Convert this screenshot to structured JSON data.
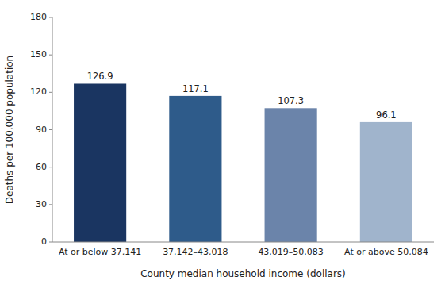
{
  "chart_data": {
    "type": "bar",
    "categories": [
      "At or below 37,141",
      "37,142–43,018",
      "43,019–50,083",
      "At or above 50,084"
    ],
    "values": [
      126.9,
      117.1,
      107.3,
      96.1
    ],
    "colors": [
      "#1a3561",
      "#2e5b8a",
      "#6b84aa",
      "#a0b4cc"
    ],
    "xlabel": "County median household income (dollars)",
    "ylabel": "Deaths per 100,000 population",
    "ylim": [
      0,
      180
    ],
    "yticks": [
      0,
      30,
      60,
      90,
      120,
      150,
      180
    ],
    "data_labels": true,
    "grid": false
  }
}
